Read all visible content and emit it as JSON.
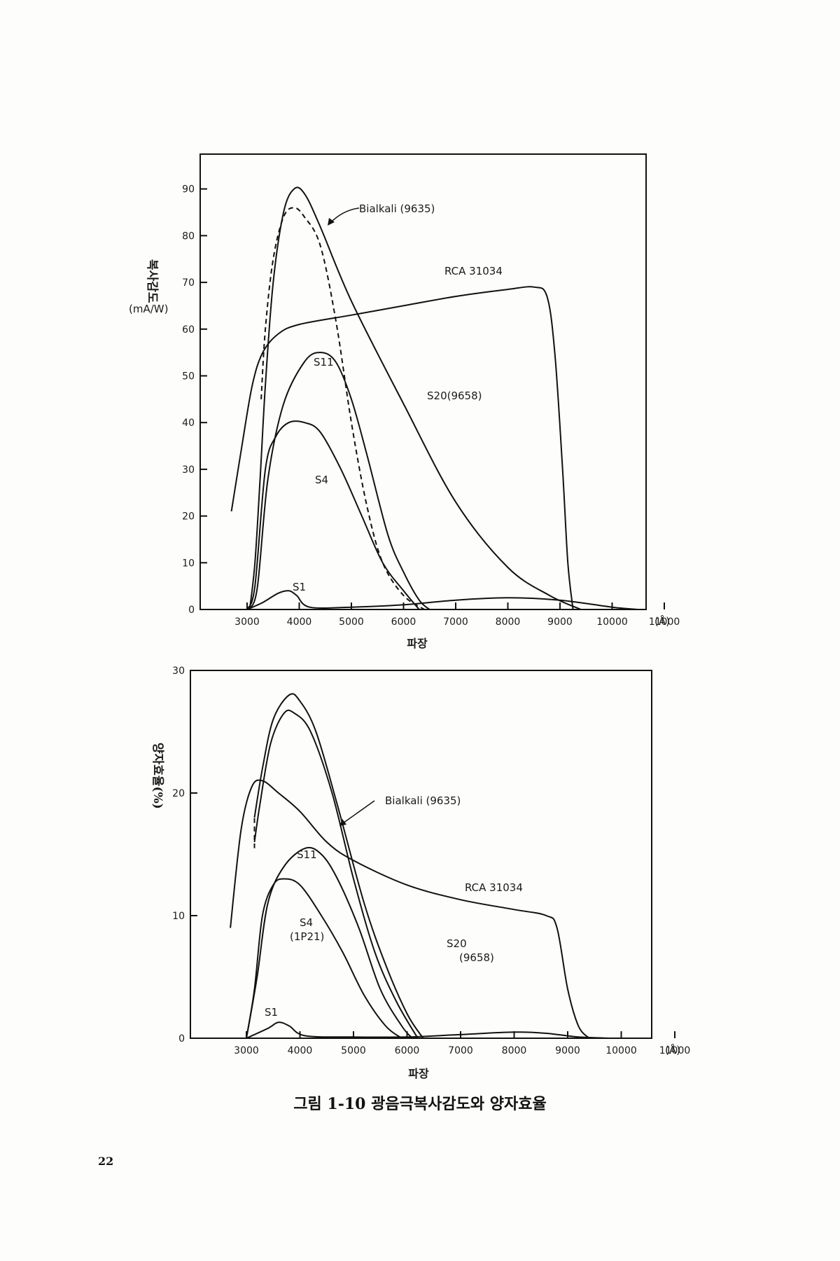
{
  "figure_caption": "그림 1-10  광음극복사감도와 양자효율",
  "page_number": "22",
  "chart_data": [
    {
      "type": "line",
      "title": "",
      "xlabel": "파장",
      "ylabel": "복사감도",
      "ylabel_unit": "(mA/W)",
      "x_unit": "(Å)",
      "xlim": [
        2000,
        11000
      ],
      "ylim": [
        0,
        95
      ],
      "xticks": [
        3000,
        4000,
        5000,
        6000,
        7000,
        8000,
        9000,
        10000,
        11000
      ],
      "yticks": [
        0,
        10,
        20,
        30,
        40,
        50,
        60,
        70,
        80,
        90
      ],
      "series": [
        {
          "name": "S20(9658)",
          "dashed": false,
          "points": [
            [
              3050,
              0
            ],
            [
              3150,
              10
            ],
            [
              3250,
              28
            ],
            [
              3350,
              48
            ],
            [
              3500,
              70
            ],
            [
              3700,
              85
            ],
            [
              3900,
              90
            ],
            [
              4100,
              89
            ],
            [
              4400,
              82
            ],
            [
              5000,
              66
            ],
            [
              6000,
              44
            ],
            [
              7000,
              23
            ],
            [
              8000,
              9
            ],
            [
              8800,
              3
            ],
            [
              9400,
              0
            ]
          ]
        },
        {
          "name": "Bialkali (9635)",
          "dashed": true,
          "points": [
            [
              3270,
              45
            ],
            [
              3350,
              60
            ],
            [
              3500,
              75
            ],
            [
              3700,
              84
            ],
            [
              3900,
              86
            ],
            [
              4100,
              84
            ],
            [
              4400,
              78
            ],
            [
              4700,
              62
            ],
            [
              5000,
              40
            ],
            [
              5300,
              22
            ],
            [
              5600,
              10
            ],
            [
              6000,
              3
            ],
            [
              6400,
              0
            ]
          ]
        },
        {
          "name": "RCA 31034",
          "dashed": false,
          "points": [
            [
              2700,
              21
            ],
            [
              2900,
              35
            ],
            [
              3100,
              48
            ],
            [
              3300,
              55
            ],
            [
              3600,
              59
            ],
            [
              4000,
              61
            ],
            [
              5000,
              63
            ],
            [
              6000,
              65
            ],
            [
              7000,
              67
            ],
            [
              8000,
              68.5
            ],
            [
              8500,
              69
            ],
            [
              8750,
              67
            ],
            [
              8900,
              55
            ],
            [
              9050,
              30
            ],
            [
              9150,
              10
            ],
            [
              9250,
              0
            ]
          ]
        },
        {
          "name": "S11",
          "dashed": false,
          "points": [
            [
              3050,
              0
            ],
            [
              3200,
              5
            ],
            [
              3400,
              28
            ],
            [
              3700,
              44
            ],
            [
              4100,
              53
            ],
            [
              4400,
              55
            ],
            [
              4700,
              53
            ],
            [
              5000,
              45
            ],
            [
              5300,
              33
            ],
            [
              5700,
              16
            ],
            [
              6000,
              8
            ],
            [
              6300,
              2
            ],
            [
              6500,
              0
            ]
          ]
        },
        {
          "name": "S4",
          "dashed": false,
          "points": [
            [
              3000,
              0
            ],
            [
              3150,
              5
            ],
            [
              3350,
              30
            ],
            [
              3550,
              37
            ],
            [
              3800,
              40
            ],
            [
              4100,
              40
            ],
            [
              4400,
              38
            ],
            [
              4800,
              30
            ],
            [
              5200,
              20
            ],
            [
              5600,
              10
            ],
            [
              6000,
              4
            ],
            [
              6300,
              0
            ]
          ]
        },
        {
          "name": "S1",
          "dashed": false,
          "points": [
            [
              3000,
              0
            ],
            [
              3300,
              1.5
            ],
            [
              3600,
              3.5
            ],
            [
              3800,
              4
            ],
            [
              3950,
              3
            ],
            [
              4200,
              0.5
            ],
            [
              5000,
              0.5
            ],
            [
              6000,
              1
            ],
            [
              7000,
              2
            ],
            [
              8000,
              2.5
            ],
            [
              9000,
              2
            ],
            [
              10000,
              0.5
            ],
            [
              10500,
              0
            ]
          ]
        }
      ],
      "curve_labels": [
        "Bialkali (9635)",
        "RCA 31034",
        "S11",
        "S20(9658)",
        "S4",
        "S1"
      ]
    },
    {
      "type": "line",
      "title": "",
      "xlabel": "파장",
      "ylabel": "양자효율(%)",
      "x_unit": "(Å)",
      "xlim": [
        2000,
        11000
      ],
      "ylim": [
        0,
        30
      ],
      "xticks": [
        3000,
        4000,
        5000,
        6000,
        7000,
        8000,
        9000,
        10000,
        11000
      ],
      "yticks": [
        0,
        10,
        20,
        30
      ],
      "series": [
        {
          "name": "S20 (9658)",
          "dashed": false,
          "points": [
            [
              3150,
              18
            ],
            [
              3300,
              22
            ],
            [
              3500,
              26
            ],
            [
              3800,
              28
            ],
            [
              4000,
              27.5
            ],
            [
              4300,
              25
            ],
            [
              4700,
              19
            ],
            [
              5200,
              11
            ],
            [
              5600,
              6
            ],
            [
              6000,
              2
            ],
            [
              6300,
              0
            ]
          ]
        },
        {
          "name": "Bialkali (9635)",
          "dashed": false,
          "points": [
            [
              3150,
              16
            ],
            [
              3250,
              19
            ],
            [
              3450,
              24
            ],
            [
              3700,
              26.5
            ],
            [
              3900,
              26.5
            ],
            [
              4200,
              25
            ],
            [
              4600,
              20
            ],
            [
              5000,
              13
            ],
            [
              5400,
              7
            ],
            [
              5800,
              3
            ],
            [
              6200,
              0
            ]
          ]
        },
        {
          "name": "Bialkali-dash",
          "dashed": true,
          "points": [
            [
              3150,
              15.5
            ],
            [
              3150,
              18
            ]
          ]
        },
        {
          "name": "RCA 31034",
          "dashed": false,
          "points": [
            [
              2700,
              9
            ],
            [
              2900,
              17
            ],
            [
              3100,
              20.5
            ],
            [
              3300,
              21
            ],
            [
              3600,
              20
            ],
            [
              4000,
              18.5
            ],
            [
              4500,
              16
            ],
            [
              5000,
              14.5
            ],
            [
              6000,
              12.5
            ],
            [
              7000,
              11.3
            ],
            [
              8000,
              10.5
            ],
            [
              8600,
              10
            ],
            [
              8800,
              9
            ],
            [
              9000,
              4
            ],
            [
              9200,
              1
            ],
            [
              9400,
              0
            ]
          ]
        },
        {
          "name": "S11",
          "dashed": false,
          "points": [
            [
              3000,
              0
            ],
            [
              3200,
              5
            ],
            [
              3400,
              11
            ],
            [
              3700,
              14
            ],
            [
              4100,
              15.5
            ],
            [
              4400,
              15
            ],
            [
              4700,
              13
            ],
            [
              5100,
              9
            ],
            [
              5500,
              4
            ],
            [
              5900,
              1
            ],
            [
              6100,
              0
            ]
          ]
        },
        {
          "name": "S4 (1P21)",
          "dashed": false,
          "points": [
            [
              3000,
              0
            ],
            [
              3150,
              4
            ],
            [
              3300,
              10
            ],
            [
              3500,
              12.5
            ],
            [
              3700,
              13
            ],
            [
              4000,
              12.5
            ],
            [
              4400,
              10
            ],
            [
              4800,
              7
            ],
            [
              5200,
              3.5
            ],
            [
              5600,
              1
            ],
            [
              5900,
              0
            ]
          ]
        },
        {
          "name": "S1",
          "dashed": false,
          "points": [
            [
              3000,
              0
            ],
            [
              3400,
              0.8
            ],
            [
              3600,
              1.3
            ],
            [
              3800,
              1
            ],
            [
              4100,
              0.2
            ],
            [
              5000,
              0.1
            ],
            [
              6000,
              0.1
            ],
            [
              7000,
              0.3
            ],
            [
              8000,
              0.5
            ],
            [
              8600,
              0.4
            ],
            [
              9200,
              0.1
            ],
            [
              9800,
              0
            ]
          ]
        }
      ],
      "curve_labels": [
        "Bialkali (9635)",
        "S11",
        "RCA 31034",
        "S4",
        "(1P21)",
        "S20",
        "(9658)",
        "S1"
      ]
    }
  ]
}
